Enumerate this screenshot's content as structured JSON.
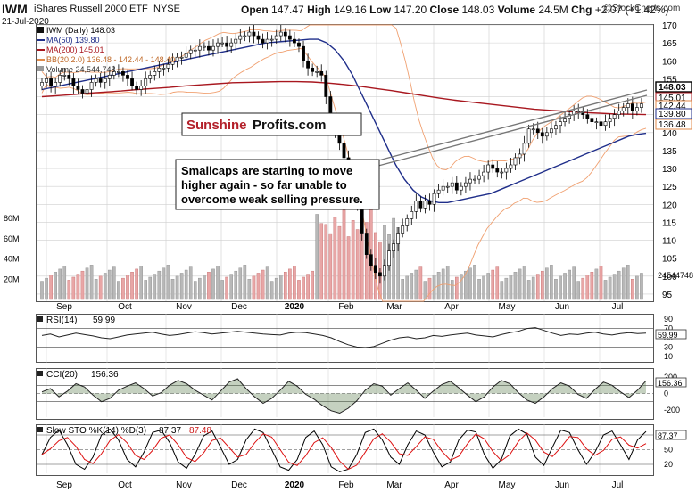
{
  "header": {
    "ticker": "IWM",
    "name": "iShares Russell 2000 ETF",
    "exchange": "NYSE",
    "date": "21-Jul-2020",
    "open_label": "Open",
    "open": "147.47",
    "high_label": "High",
    "high": "149.16",
    "low_label": "Low",
    "low": "147.20",
    "close_label": "Close",
    "close": "148.03",
    "volume_label": "Volume",
    "volume": "24.5M",
    "chg_label": "Chg",
    "chg": "+2.07 (+1.42%)",
    "watermark": "@StockCharts.com"
  },
  "legend": {
    "main": "IWM (Daily) 148.03",
    "ma50": "MA(50) 139.80",
    "ma200": "MA(200) 145.01",
    "bb": "BB(20,2.0) 136.48 - 142.44 - 148.40",
    "volume": "Volume 24,544,748"
  },
  "branding": {
    "part1": "Sunshine",
    "part2": "Profits.com"
  },
  "annotation": {
    "line1": "Smallcaps are starting to move",
    "line2": "higher again - so far unable to",
    "line3": "overcome weak selling pressure."
  },
  "colors": {
    "up": "#ffffff",
    "down": "#000000",
    "ma50": "#1f2e8a",
    "ma200": "#a8171f",
    "bb": "#f0a070",
    "volume_up": "#b8b8b8",
    "volume_down": "#e8a6a6",
    "grid": "#cfcfcf",
    "label_box": "#000000"
  },
  "chart_data": [
    {
      "type": "candlestick",
      "title": "IWM (Daily)",
      "ylim": [
        93,
        170
      ],
      "y_ticks": [
        95,
        100,
        105,
        110,
        115,
        120,
        125,
        130,
        135,
        140,
        145,
        150,
        155,
        160,
        165,
        170
      ],
      "x_month_labels": [
        "Sep",
        "Oct",
        "Nov",
        "Dec",
        "2020",
        "Feb",
        "Mar",
        "Apr",
        "May",
        "Jun",
        "Jul"
      ],
      "price_boxes": [
        "148.03",
        "145.01",
        "142.44",
        "139.80",
        "136.48"
      ],
      "close_series": [
        154,
        155,
        153,
        154,
        156,
        156,
        155,
        153,
        152,
        151,
        152,
        154,
        155,
        154,
        155,
        156,
        157,
        157,
        156,
        155,
        153,
        152,
        153,
        155,
        156,
        157,
        158,
        158,
        159,
        160,
        161,
        161,
        162,
        163,
        163,
        164,
        164,
        163,
        164,
        165,
        165,
        164,
        165,
        166,
        167,
        167,
        168,
        167,
        166,
        165,
        166,
        166,
        167,
        168,
        167,
        166,
        165,
        164,
        160,
        158,
        157,
        157,
        156,
        150,
        143,
        140,
        137,
        133,
        129,
        126,
        120,
        112,
        106,
        103,
        101,
        100,
        103,
        107,
        109,
        112,
        114,
        116,
        118,
        121,
        119,
        121,
        120,
        123,
        124,
        125,
        125,
        126,
        124,
        125,
        126,
        127,
        127,
        128,
        129,
        131,
        130,
        129,
        129,
        130,
        131,
        133,
        134,
        137,
        141,
        141,
        140,
        139,
        140,
        141,
        142,
        143,
        144,
        145,
        146,
        146,
        145,
        144,
        143,
        143,
        142,
        143,
        144,
        145,
        146,
        147,
        148,
        146,
        147,
        148
      ],
      "ma50_values": [
        152,
        152.5,
        153,
        153.5,
        154,
        154.5,
        155,
        155.5,
        156,
        156.5,
        157,
        157.5,
        158,
        158.5,
        159,
        159.5,
        160,
        160.5,
        161,
        161.5,
        162,
        162.5,
        163,
        163.5,
        164,
        164.5,
        165,
        165.2,
        165.4,
        165.6,
        165.8,
        166,
        166,
        165,
        163,
        160,
        156,
        151,
        146,
        141,
        136,
        131,
        127,
        124,
        122,
        121,
        120.5,
        120.5,
        121,
        121.5,
        122,
        122.5,
        123,
        124,
        125,
        126,
        127,
        128,
        129,
        130,
        131,
        132,
        133,
        134,
        135,
        136,
        137,
        138,
        139,
        139.5,
        139.8
      ],
      "ma200_values": [
        150,
        150.3,
        150.6,
        151,
        151.3,
        151.6,
        152,
        152.3,
        152.6,
        153,
        153.3,
        153.6,
        153.9,
        154,
        154.1,
        154.2,
        154.2,
        154.1,
        153.8,
        153.4,
        152.9,
        152.3,
        151.7,
        151,
        150.3,
        149.6,
        149,
        148.5,
        148,
        147.5,
        147,
        146.5,
        146.2,
        145.9,
        145.6,
        145.4,
        145.2,
        145.1,
        145.01
      ],
      "bb_values": {
        "upper": "148.40",
        "middle": "142.44",
        "lower": "136.48"
      },
      "volume_ylim_labels": [
        "20M",
        "40M",
        "60M",
        "80M"
      ],
      "volume_last": "24544748"
    },
    {
      "type": "line",
      "title": "RSI(14)",
      "value": "59.99",
      "ylim": [
        0,
        100
      ],
      "y_ticks": [
        "90",
        "70",
        "50",
        "30",
        "10"
      ],
      "values": [
        55,
        58,
        52,
        56,
        60,
        57,
        54,
        50,
        48,
        52,
        56,
        58,
        60,
        62,
        58,
        55,
        57,
        60,
        63,
        61,
        58,
        60,
        62,
        64,
        62,
        60,
        58,
        57,
        56,
        60,
        62,
        61,
        58,
        55,
        50,
        42,
        35,
        30,
        28,
        31,
        38,
        45,
        50,
        52,
        48,
        50,
        55,
        53,
        56,
        58,
        60,
        56,
        54,
        52,
        57,
        61,
        64,
        70,
        72,
        66,
        60,
        55,
        58,
        57,
        60,
        62,
        58,
        56,
        59,
        61,
        59,
        60
      ]
    },
    {
      "type": "line",
      "title": "CCI(20)",
      "value": "156.36",
      "ylim": [
        -300,
        300
      ],
      "y_ticks": [
        "200",
        "0",
        "-200"
      ],
      "values": [
        20,
        60,
        -40,
        30,
        120,
        80,
        -20,
        -100,
        -60,
        40,
        90,
        130,
        60,
        -30,
        10,
        100,
        160,
        120,
        40,
        -20,
        -80,
        30,
        140,
        180,
        60,
        -40,
        -120,
        -60,
        40,
        150,
        90,
        -10,
        -70,
        -150,
        -210,
        -240,
        -180,
        -90,
        40,
        120,
        90,
        -20,
        60,
        130,
        40,
        -60,
        30,
        110,
        150,
        70,
        -20,
        -100,
        -40,
        80,
        160,
        120,
        10,
        -80,
        -120,
        -40,
        60,
        130,
        90,
        -10,
        -60,
        50,
        140,
        100,
        20,
        -50,
        40,
        156
      ]
    },
    {
      "type": "line",
      "title": "Slow STO %K(14) %D(3)",
      "value_k": "87.37",
      "value_d": "87.48",
      "ylim": [
        0,
        100
      ],
      "y_ticks": [
        "80",
        "50",
        "20"
      ],
      "k_values": [
        40,
        75,
        90,
        60,
        20,
        10,
        35,
        80,
        92,
        70,
        30,
        15,
        45,
        85,
        90,
        65,
        25,
        12,
        40,
        78,
        88,
        55,
        20,
        30,
        70,
        92,
        85,
        50,
        15,
        8,
        30,
        75,
        88,
        60,
        15,
        5,
        10,
        40,
        85,
        92,
        70,
        35,
        20,
        60,
        88,
        80,
        45,
        15,
        25,
        70,
        90,
        86,
        40,
        12,
        30,
        78,
        92,
        82,
        35,
        18,
        55,
        90,
        85,
        50,
        20,
        45,
        80,
        88,
        60,
        30,
        70,
        87
      ]
    }
  ]
}
